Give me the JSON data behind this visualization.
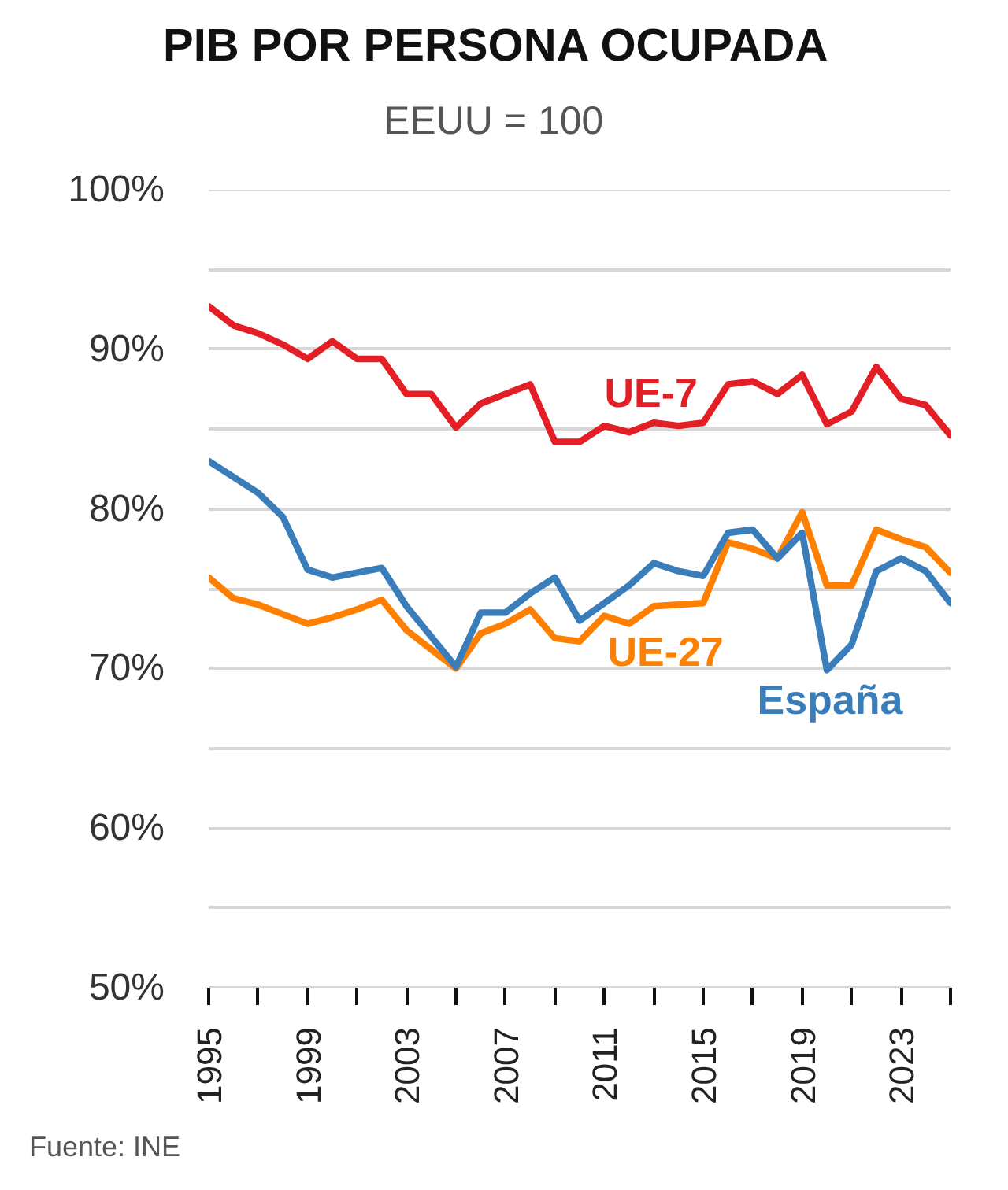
{
  "chart_data": {
    "type": "line",
    "title": "PIB POR PERSONA OCUPADA",
    "subtitle": "EEUU = 100",
    "annotations": [
      "Fuente: INE"
    ],
    "x": [
      1995,
      1996,
      1997,
      1998,
      1999,
      2000,
      2001,
      2002,
      2003,
      2004,
      2005,
      2006,
      2007,
      2008,
      2009,
      2010,
      2011,
      2012,
      2013,
      2014,
      2015,
      2016,
      2017,
      2018,
      2019,
      2020,
      2021,
      2022,
      2023,
      2024,
      2025
    ],
    "series": [
      {
        "name": "UE-7",
        "color": "#e31e24",
        "values": [
          92.7,
          91.5,
          91.0,
          90.3,
          89.4,
          90.5,
          89.4,
          89.4,
          87.2,
          87.2,
          85.1,
          86.6,
          87.2,
          87.8,
          84.2,
          84.2,
          85.2,
          84.8,
          85.4,
          85.2,
          85.4,
          87.8,
          88.0,
          87.2,
          88.4,
          85.3,
          86.1,
          88.9,
          86.9,
          86.5,
          84.6
        ]
      },
      {
        "name": "UE-27",
        "color": "#ff8000",
        "values": [
          75.7,
          74.4,
          74.0,
          73.4,
          72.8,
          73.2,
          73.7,
          74.3,
          72.4,
          71.2,
          70.0,
          72.2,
          72.8,
          73.7,
          71.9,
          71.7,
          73.3,
          72.8,
          73.9,
          74.0,
          74.1,
          77.9,
          77.5,
          76.9,
          79.8,
          75.2,
          75.2,
          78.7,
          78.1,
          77.6,
          76.0
        ]
      },
      {
        "name": "España",
        "color": "#3a7dbb",
        "values": [
          83.0,
          82.0,
          81.0,
          79.5,
          76.2,
          75.7,
          76.0,
          76.3,
          73.9,
          72.0,
          70.1,
          73.5,
          73.5,
          74.7,
          75.7,
          73.0,
          74.1,
          75.2,
          76.6,
          76.1,
          75.8,
          78.5,
          78.7,
          76.9,
          78.5,
          69.9,
          71.5,
          76.1,
          76.9,
          76.1,
          74.1
        ]
      }
    ],
    "xlim": [
      1995,
      2025
    ],
    "xticks": [
      1995,
      {
        "value": 1997,
        "label": null
      },
      1999,
      {
        "value": 2001,
        "label": null
      },
      2003,
      {
        "value": 2005,
        "label": null
      },
      2007,
      {
        "value": 2009,
        "label": null
      },
      2011,
      {
        "value": 2013,
        "label": null
      },
      2015,
      {
        "value": 2017,
        "label": null
      },
      2019,
      {
        "value": 2021,
        "label": null
      },
      2023,
      {
        "value": 2025,
        "label": null
      }
    ],
    "ylim": [
      50,
      100
    ],
    "yticks": [
      {
        "value": 50,
        "label": "50%"
      },
      {
        "value": 55,
        "label": null
      },
      {
        "value": 60,
        "label": "60%"
      },
      {
        "value": 65,
        "label": null
      },
      {
        "value": 70,
        "label": "70%"
      },
      {
        "value": 75,
        "label": null
      },
      {
        "value": 80,
        "label": "80%"
      },
      {
        "value": 85,
        "label": null
      },
      {
        "value": 90,
        "label": "90%"
      },
      {
        "value": 95,
        "label": null
      },
      {
        "value": 100,
        "label": "100%"
      }
    ],
    "grid": "y",
    "line_style": "solid"
  }
}
